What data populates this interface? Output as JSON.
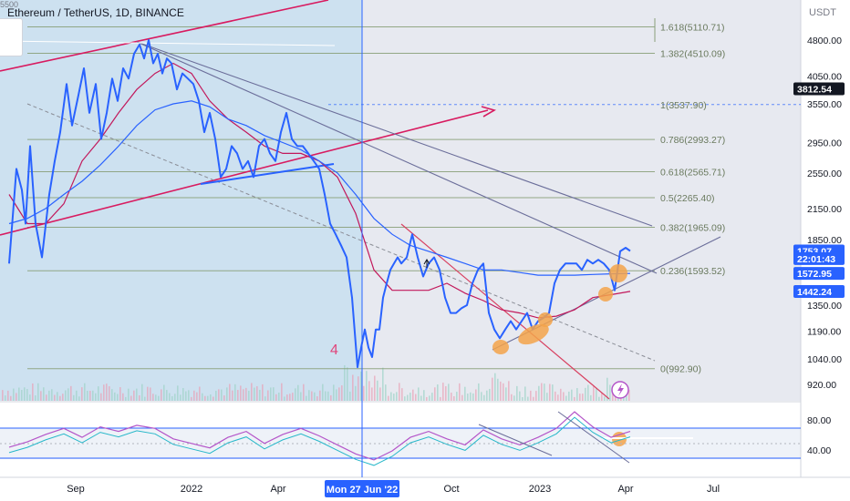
{
  "header": {
    "symbol_title": "Ethereum / TetherUS, 1D, BINANCE",
    "top_clip": "5500",
    "currency": "USDT"
  },
  "price_axis": {
    "ticks": [
      {
        "label": "4800.00",
        "value": 4800
      },
      {
        "label": "4050.00",
        "value": 4050
      },
      {
        "label": "3550.00",
        "value": 3550
      },
      {
        "label": "2950.00",
        "value": 2950
      },
      {
        "label": "2550.00",
        "value": 2550
      },
      {
        "label": "2150.00",
        "value": 2150
      },
      {
        "label": "1850.00",
        "value": 1850
      },
      {
        "label": "1350.00",
        "value": 1350
      },
      {
        "label": "1190.00",
        "value": 1190
      },
      {
        "label": "1040.00",
        "value": 1040
      },
      {
        "label": "920.00",
        "value": 920
      }
    ],
    "badges": [
      {
        "name": "crosshair",
        "label": "3812.54",
        "value": 3812.54,
        "color": "#131722"
      },
      {
        "name": "last-price",
        "label": "1753.07",
        "value": 1753.07,
        "color": "#2962ff"
      },
      {
        "name": "countdown",
        "label": "22:01:43",
        "value": 1690,
        "color": "#2962ff"
      },
      {
        "name": "ma-fast",
        "label": "1572.95",
        "value": 1572.95,
        "color": "#2962ff"
      },
      {
        "name": "ma-slow",
        "label": "1442.24",
        "value": 1442.24,
        "color": "#2962ff"
      }
    ]
  },
  "rsi_axis": {
    "ticks": [
      {
        "label": "80.00",
        "value": 80
      },
      {
        "label": "40.00",
        "value": 40
      }
    ]
  },
  "time_axis": {
    "ticks": [
      {
        "label": "Sep",
        "t": 83
      },
      {
        "label": "2022",
        "t": 210
      },
      {
        "label": "Apr",
        "t": 305
      },
      {
        "label": "Oct",
        "t": 495
      },
      {
        "label": "2023",
        "t": 592
      },
      {
        "label": "Apr",
        "t": 686
      },
      {
        "label": "Jul",
        "t": 782
      }
    ],
    "crosshair": {
      "label": "Mon 27 Jun '22",
      "t": 397
    }
  },
  "annotations": {
    "wave_label": "4",
    "fibonacci": [
      {
        "ratio": "1.618",
        "label": "1.618(5110.71)",
        "price": 5110.71
      },
      {
        "ratio": "1.382",
        "label": "1.382(4510.09)",
        "price": 4510.09
      },
      {
        "ratio": "1",
        "label": "1(3537.90)",
        "price": 3537.9
      },
      {
        "ratio": "0.786",
        "label": "0.786(2993.27)",
        "price": 2993.27
      },
      {
        "ratio": "0.618",
        "label": "0.618(2565.71)",
        "price": 2565.71
      },
      {
        "ratio": "0.5",
        "label": "0.5(2265.40)",
        "price": 2265.4
      },
      {
        "ratio": "0.382",
        "label": "0.382(1965.09)",
        "price": 1965.09
      },
      {
        "ratio": "0.236",
        "label": "0.236(1593.52)",
        "price": 1593.52
      },
      {
        "ratio": "0",
        "label": "0(992.90)",
        "price": 992.9
      }
    ]
  },
  "colors": {
    "price_line": "#2962ff",
    "ma_slow": "#c2185b",
    "ma_fast": "#2962ff",
    "trend_pink": "#d81b60",
    "trend_grey": "#6b6e9a",
    "fib": "#8aa07a",
    "rsi": "#b455c9",
    "rsi_band": "#26b7c9",
    "highlight": "#f3a34a",
    "box_fill": "#c8dff0"
  },
  "chart_data": {
    "type": "line",
    "title": "Ethereum / TetherUS, 1D, BINANCE",
    "xlabel": "",
    "ylabel": "USDT",
    "ylim": [
      880,
      5500
    ],
    "y_scale": "log",
    "grid": false,
    "legend": "none",
    "x_tick_labels": [
      "Sep",
      "2022",
      "Apr",
      "Oct",
      "2023",
      "Apr",
      "Jul"
    ],
    "series": [
      {
        "role": "price",
        "x": [
          0,
          8,
          14,
          18,
          23,
          29,
          36,
          44,
          50,
          56,
          63,
          69,
          76,
          82,
          88,
          95,
          101,
          107,
          113,
          119,
          125,
          131,
          137,
          143,
          148,
          153,
          158,
          163,
          168,
          173,
          178,
          184,
          190,
          196,
          202,
          208,
          214,
          220,
          226,
          232,
          238,
          244,
          250,
          256,
          262,
          268,
          274,
          280,
          286,
          292,
          298,
          304,
          310,
          316,
          322,
          328,
          334,
          340,
          346,
          352,
          358,
          364,
          370,
          376,
          382,
          386,
          390,
          394,
          398,
          402,
          406,
          410,
          414,
          418,
          422,
          426,
          430,
          436,
          442,
          448,
          454,
          460,
          466,
          472,
          478,
          484,
          490,
          496,
          502,
          508,
          514,
          520,
          526,
          532,
          538,
          544,
          550,
          556,
          562,
          568,
          574,
          580,
          586,
          592,
          598,
          604,
          610,
          616,
          622,
          628,
          634,
          640,
          646,
          652,
          658,
          664,
          670,
          676,
          681
        ],
        "y": [
          1650,
          2600,
          2350,
          2000,
          2900,
          2000,
          1700,
          2300,
          2700,
          3100,
          3900,
          3200,
          3700,
          4200,
          3400,
          3900,
          3000,
          3400,
          4000,
          3600,
          4200,
          4000,
          4500,
          4700,
          4400,
          4800,
          4300,
          4500,
          4100,
          4400,
          4300,
          3800,
          4100,
          4000,
          3900,
          3600,
          3100,
          3400,
          3000,
          2500,
          2600,
          2900,
          2800,
          2600,
          2700,
          2500,
          2900,
          3000,
          2800,
          2700,
          3100,
          3400,
          3000,
          2900,
          2900,
          2800,
          2700,
          2600,
          2300,
          2000,
          1900,
          1800,
          1700,
          1400,
          1000,
          1100,
          1200,
          1100,
          1050,
          1200,
          1200,
          1400,
          1500,
          1600,
          1650,
          1700,
          1650,
          1700,
          1900,
          1700,
          1550,
          1650,
          1700,
          1600,
          1400,
          1300,
          1300,
          1330,
          1350,
          1500,
          1600,
          1650,
          1300,
          1200,
          1150,
          1200,
          1250,
          1200,
          1250,
          1300,
          1200,
          1250,
          1270,
          1300,
          1500,
          1600,
          1650,
          1650,
          1650,
          1600,
          1680,
          1650,
          1680,
          1650,
          1600,
          1450,
          1750,
          1780,
          1753.07
        ]
      },
      {
        "role": "ma-slow",
        "x": [
          0,
          20,
          40,
          60,
          80,
          100,
          120,
          140,
          160,
          180,
          200,
          220,
          240,
          260,
          280,
          300,
          320,
          340,
          360,
          380,
          400,
          420,
          440,
          460,
          480,
          500,
          520,
          540,
          560,
          580,
          600,
          620,
          640,
          660,
          681
        ],
        "y": [
          2300,
          2000,
          2000,
          2200,
          2700,
          3000,
          3400,
          3800,
          4100,
          4300,
          4100,
          3600,
          3300,
          3100,
          2900,
          2800,
          2800,
          2700,
          2500,
          2100,
          1600,
          1450,
          1450,
          1450,
          1500,
          1430,
          1380,
          1320,
          1300,
          1270,
          1280,
          1320,
          1400,
          1420,
          1442.24
        ]
      },
      {
        "role": "ma-fast",
        "x": [
          0,
          20,
          40,
          60,
          80,
          100,
          120,
          140,
          160,
          180,
          200,
          220,
          240,
          260,
          280,
          300,
          320,
          340,
          360,
          380,
          400,
          420,
          440,
          460,
          480,
          500,
          520,
          540,
          560,
          580,
          600,
          620,
          640,
          660,
          681
        ],
        "y": [
          2000,
          2050,
          2150,
          2300,
          2450,
          2650,
          2900,
          3200,
          3450,
          3550,
          3600,
          3500,
          3300,
          3200,
          3050,
          2950,
          2850,
          2700,
          2550,
          2300,
          2050,
          1900,
          1800,
          1750,
          1700,
          1650,
          1600,
          1600,
          1580,
          1560,
          1560,
          1560,
          1565,
          1570,
          1572.95
        ]
      },
      {
        "role": "rsi",
        "x": [
          0,
          20,
          40,
          60,
          80,
          100,
          120,
          140,
          160,
          180,
          200,
          220,
          240,
          260,
          280,
          300,
          320,
          340,
          360,
          380,
          400,
          420,
          440,
          460,
          480,
          500,
          520,
          540,
          560,
          580,
          600,
          620,
          640,
          660,
          681
        ],
        "y": [
          45,
          52,
          62,
          70,
          58,
          72,
          66,
          74,
          70,
          56,
          50,
          44,
          58,
          66,
          50,
          62,
          70,
          60,
          48,
          36,
          28,
          40,
          58,
          66,
          56,
          48,
          68,
          56,
          48,
          58,
          70,
          92,
          72,
          58,
          66
        ]
      }
    ]
  }
}
